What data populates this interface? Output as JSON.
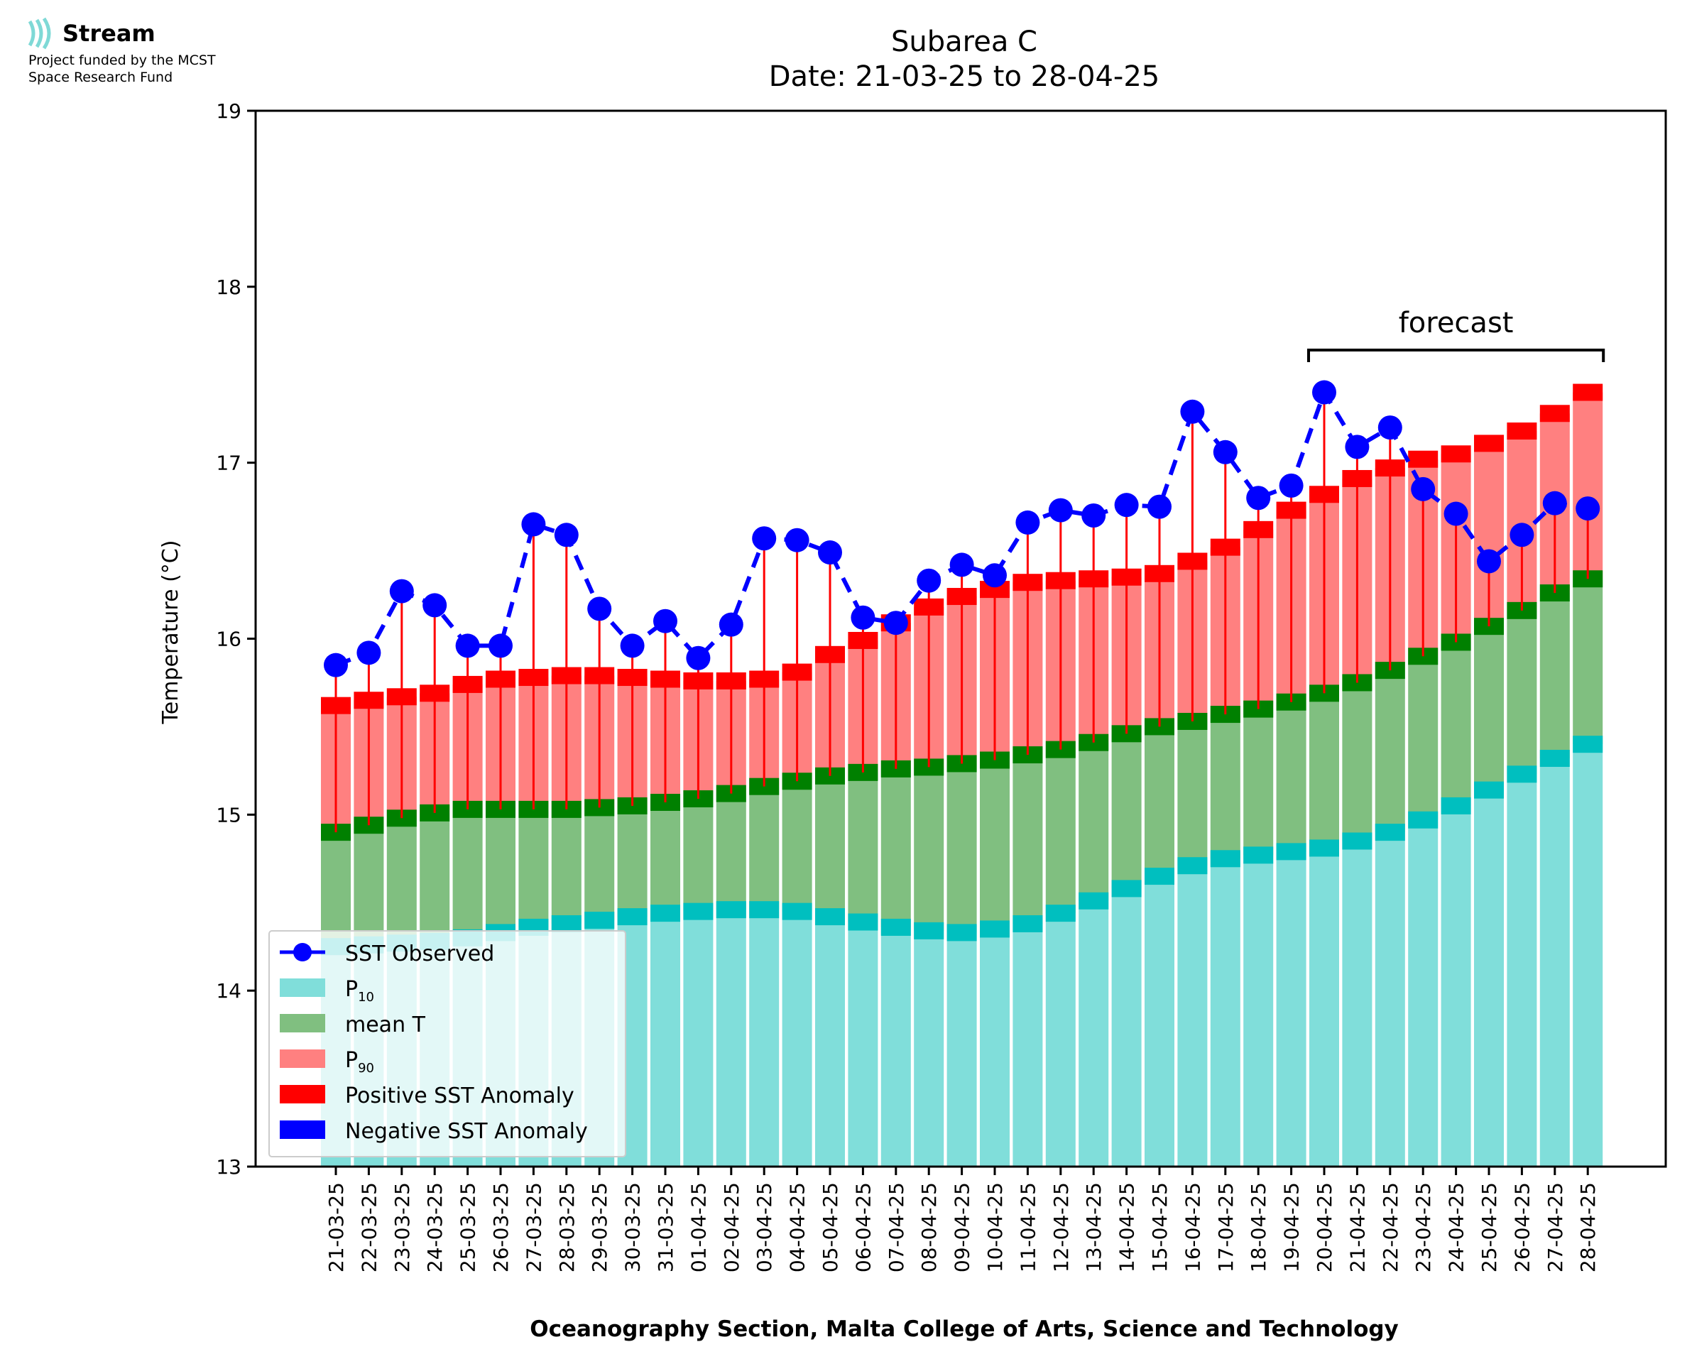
{
  "logo": {
    "name": "Stream",
    "line1": "Project funded by the MCST",
    "line2": "Space Research Fund"
  },
  "chart_data": {
    "type": "bar",
    "title": "Subarea C",
    "subtitle": "Date: 21-03-25 to 28-04-25",
    "xlabel": "Oceanography Section, Malta College of Arts, Science and Technology",
    "ylabel": "Temperature (°C)",
    "ylim": [
      13,
      19
    ],
    "yticks": [
      13,
      14,
      15,
      16,
      17,
      18,
      19
    ],
    "categories": [
      "21-03-25",
      "22-03-25",
      "23-03-25",
      "24-03-25",
      "25-03-25",
      "26-03-25",
      "27-03-25",
      "28-03-25",
      "29-03-25",
      "30-03-25",
      "31-03-25",
      "01-04-25",
      "02-04-25",
      "03-04-25",
      "04-04-25",
      "05-04-25",
      "06-04-25",
      "07-04-25",
      "08-04-25",
      "09-04-25",
      "10-04-25",
      "11-04-25",
      "12-04-25",
      "13-04-25",
      "14-04-25",
      "15-04-25",
      "16-04-25",
      "17-04-25",
      "18-04-25",
      "19-04-25",
      "20-04-25",
      "21-04-25",
      "22-04-25",
      "23-04-25",
      "24-04-25",
      "25-04-25",
      "26-04-25",
      "27-04-25",
      "28-04-25"
    ],
    "series": [
      {
        "name": "SST Observed",
        "type": "line",
        "color": "#0000ff",
        "values": [
          15.85,
          15.92,
          16.27,
          16.19,
          15.96,
          15.96,
          16.65,
          16.59,
          16.17,
          15.96,
          16.1,
          15.89,
          16.08,
          16.57,
          16.56,
          16.49,
          16.12,
          16.09,
          16.33,
          16.42,
          16.36,
          16.66,
          16.73,
          16.7,
          16.76,
          16.75,
          17.29,
          17.06,
          16.8,
          16.87,
          17.4,
          17.09,
          17.2,
          16.85,
          16.71,
          16.44,
          16.59,
          16.77,
          16.74
        ]
      },
      {
        "name": "P10",
        "color": "#80deda",
        "values": [
          14.25,
          14.26,
          14.27,
          14.28,
          14.3,
          14.33,
          14.36,
          14.38,
          14.4,
          14.42,
          14.44,
          14.45,
          14.46,
          14.46,
          14.45,
          14.42,
          14.39,
          14.36,
          14.34,
          14.33,
          14.35,
          14.38,
          14.44,
          14.51,
          14.58,
          14.65,
          14.71,
          14.75,
          14.77,
          14.79,
          14.81,
          14.85,
          14.9,
          14.97,
          15.05,
          15.14,
          15.23,
          15.32,
          15.4
        ]
      },
      {
        "name": "mean T",
        "color": "#80bf80",
        "values": [
          14.9,
          14.94,
          14.98,
          15.01,
          15.03,
          15.03,
          15.03,
          15.03,
          15.04,
          15.05,
          15.07,
          15.09,
          15.12,
          15.16,
          15.19,
          15.22,
          15.24,
          15.26,
          15.27,
          15.29,
          15.31,
          15.34,
          15.37,
          15.41,
          15.46,
          15.5,
          15.53,
          15.57,
          15.6,
          15.64,
          15.69,
          15.75,
          15.82,
          15.9,
          15.98,
          16.07,
          16.16,
          16.26,
          16.34
        ]
      },
      {
        "name": "P90",
        "color": "#ff8080",
        "values": [
          15.62,
          15.65,
          15.67,
          15.69,
          15.74,
          15.77,
          15.78,
          15.79,
          15.79,
          15.78,
          15.77,
          15.76,
          15.76,
          15.77,
          15.81,
          15.91,
          15.99,
          16.09,
          16.18,
          16.24,
          16.28,
          16.32,
          16.33,
          16.34,
          16.35,
          16.37,
          16.44,
          16.52,
          16.62,
          16.73,
          16.82,
          16.91,
          16.97,
          17.02,
          17.05,
          17.11,
          17.18,
          17.28,
          17.4
        ]
      }
    ],
    "legend": {
      "placement": "lower-left",
      "entries": [
        "SST Observed",
        "P",
        "mean T",
        "P",
        "Positive SST Anomaly",
        "Negative SST Anomaly"
      ],
      "subscripts": {
        "1": "10",
        "3": "90"
      }
    },
    "colors": {
      "cap_p10": "#00bfbf",
      "cap_mean": "#008000",
      "cap_p90": "#ff0000",
      "anomaly_pos": "#ff0000",
      "anomaly_neg": "#0000ff"
    },
    "annotation": {
      "text": "forecast",
      "from": "20-04-25",
      "to": "28-04-25"
    }
  }
}
